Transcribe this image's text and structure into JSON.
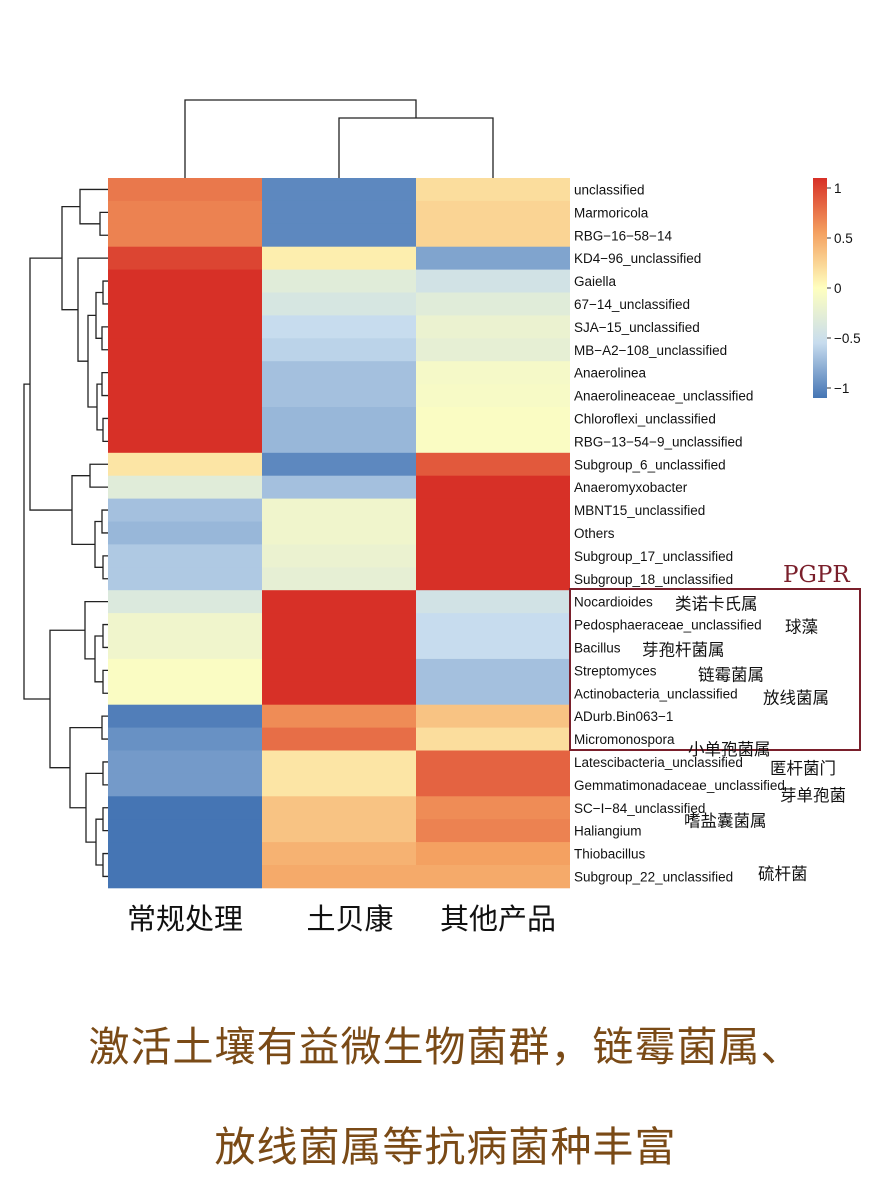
{
  "chart_data": {
    "type": "heatmap",
    "columns": [
      "常规处理",
      "土贝康",
      "其他产品"
    ],
    "rows": [
      {
        "label": "unclassified",
        "values": [
          0.75,
          -1.0,
          0.2
        ]
      },
      {
        "label": "Marmoricola",
        "values": [
          0.7,
          -1.0,
          0.25
        ]
      },
      {
        "label": "RBG−16−58−14",
        "values": [
          0.7,
          -1.0,
          0.25
        ]
      },
      {
        "label": "KD4−96_unclassified",
        "values": [
          1.0,
          0.1,
          -0.85
        ]
      },
      {
        "label": "Gaiella",
        "values": [
          1.1,
          -0.3,
          -0.45
        ]
      },
      {
        "label": "67−14_unclassified",
        "values": [
          1.1,
          -0.4,
          -0.3
        ]
      },
      {
        "label": "SJA−15_unclassified",
        "values": [
          1.1,
          -0.55,
          -0.2
        ]
      },
      {
        "label": "MB−A2−108_unclassified",
        "values": [
          1.1,
          -0.6,
          -0.25
        ]
      },
      {
        "label": "Anaerolinea",
        "values": [
          1.1,
          -0.7,
          -0.1
        ]
      },
      {
        "label": "Anaerolineaceae_unclassified",
        "values": [
          1.1,
          -0.7,
          -0.08
        ]
      },
      {
        "label": "Chloroflexi_unclassified",
        "values": [
          1.1,
          -0.75,
          -0.05
        ]
      },
      {
        "label": "RBG−13−54−9_unclassified",
        "values": [
          1.1,
          -0.75,
          -0.05
        ]
      },
      {
        "label": "Subgroup_6_unclassified",
        "values": [
          0.15,
          -1.0,
          0.9
        ]
      },
      {
        "label": "Anaeromyxobacter",
        "values": [
          -0.3,
          -0.7,
          1.1
        ]
      },
      {
        "label": "MBNT15_unclassified",
        "values": [
          -0.7,
          -0.15,
          1.1
        ]
      },
      {
        "label": "Others",
        "values": [
          -0.75,
          -0.15,
          1.1
        ]
      },
      {
        "label": "Subgroup_17_unclassified",
        "values": [
          -0.65,
          -0.2,
          1.1
        ]
      },
      {
        "label": "Subgroup_18_unclassified",
        "values": [
          -0.65,
          -0.25,
          1.1
        ]
      },
      {
        "label": "Nocardioides",
        "values": [
          -0.35,
          1.1,
          -0.45
        ]
      },
      {
        "label": "Pedosphaeraceae_unclassified",
        "values": [
          -0.15,
          1.1,
          -0.55
        ]
      },
      {
        "label": "Bacillus",
        "values": [
          -0.15,
          1.1,
          -0.55
        ]
      },
      {
        "label": "Streptomyces",
        "values": [
          -0.05,
          1.1,
          -0.7
        ]
      },
      {
        "label": "Actinobacteria_unclassified",
        "values": [
          -0.05,
          1.1,
          -0.7
        ]
      },
      {
        "label": "ADurb.Bin063−1",
        "values": [
          -1.05,
          0.65,
          0.35
        ]
      },
      {
        "label": "Micromonospora",
        "values": [
          -0.95,
          0.8,
          0.2
        ]
      },
      {
        "label": "Latescibacteria_unclassified",
        "values": [
          -0.9,
          0.15,
          0.85
        ]
      },
      {
        "label": "Gemmatimonadaceae_unclassified",
        "values": [
          -0.9,
          0.15,
          0.85
        ]
      },
      {
        "label": "SC−I−84_unclassified",
        "values": [
          -1.1,
          0.35,
          0.65
        ]
      },
      {
        "label": "Haliangium",
        "values": [
          -1.1,
          0.35,
          0.7
        ]
      },
      {
        "label": "Thiobacillus",
        "values": [
          -1.1,
          0.45,
          0.55
        ]
      },
      {
        "label": "Subgroup_22_unclassified",
        "values": [
          -1.1,
          0.5,
          0.5
        ]
      }
    ],
    "legend": {
      "ticks": [
        "1",
        "0.5",
        "0",
        "−0.5",
        "−1"
      ],
      "min": -1.1,
      "max": 1.1,
      "placement": "top-right"
    },
    "colors": {
      "high": "#d73027",
      "mid": "#ffffbf",
      "low": "#4575b4"
    },
    "annotations": [
      {
        "text": "PGPR",
        "color": "#7a1f2b"
      },
      {
        "text": "类诺卡氏属",
        "row": 18
      },
      {
        "text": "球藻",
        "row": 19
      },
      {
        "text": "芽孢杆菌属",
        "row": 20
      },
      {
        "text": "链霉菌属",
        "row": 21
      },
      {
        "text": "放线菌属",
        "row": 22
      },
      {
        "text": "小单孢菌属",
        "row": 24
      },
      {
        "text": "匿杆菌门",
        "row": 25
      },
      {
        "text": "芽单孢菌",
        "row": 26
      },
      {
        "text": "嗜盐囊菌属",
        "row": 28
      },
      {
        "text": "硫杆菌",
        "row": 30
      }
    ]
  },
  "caption": {
    "line1": "激活土壤有益微生物菌群，链霉菌属、",
    "line2": "放线菌属等抗病菌种丰富"
  }
}
